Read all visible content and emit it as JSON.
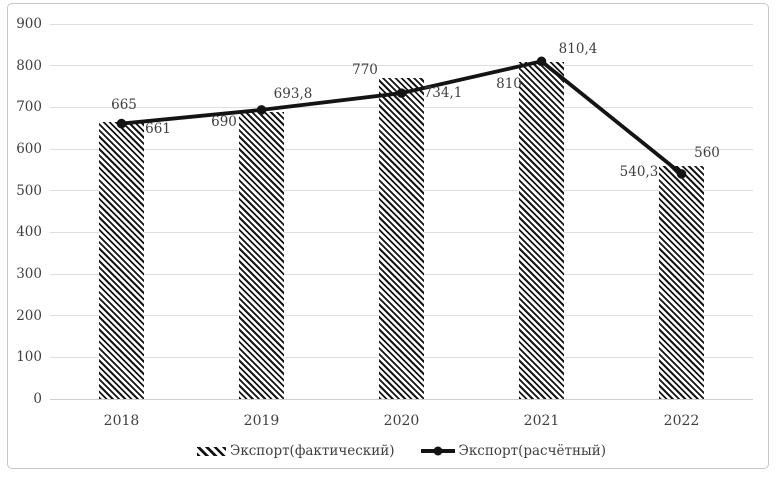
{
  "chart_data": {
    "type": "bar",
    "subtype": "bar-line-combo",
    "title": "",
    "xlabel": "",
    "ylabel": "",
    "categories": [
      "2018",
      "2019",
      "2020",
      "2021",
      "2022"
    ],
    "series": [
      {
        "name": "Экспорт(фактический)",
        "type": "bar",
        "style": "black-diagonal-hatch",
        "values": [
          665,
          690,
          770,
          810,
          560
        ],
        "labels": [
          "665",
          "690",
          "770",
          "810",
          "560"
        ]
      },
      {
        "name": "Экспорт(расчётный)",
        "type": "line",
        "style": "black-line-circle-markers",
        "values": [
          661,
          693.8,
          734.1,
          810.4,
          540.3
        ],
        "labels": [
          "661",
          "693,8",
          "734,1",
          "810,4",
          "540,3"
        ]
      }
    ],
    "ylim": [
      0,
      900
    ],
    "ytick_step": 100,
    "yticks": [
      "0",
      "100",
      "200",
      "300",
      "400",
      "500",
      "600",
      "700",
      "800",
      "900"
    ],
    "grid": "horizontal",
    "legend_position": "bottom",
    "colors": {
      "series_color": "#141414",
      "text_color": "#3f3f3f",
      "gridline_color": "#dedede",
      "frame_border_color": "#c6c6c6",
      "background": "#ffffff"
    }
  }
}
